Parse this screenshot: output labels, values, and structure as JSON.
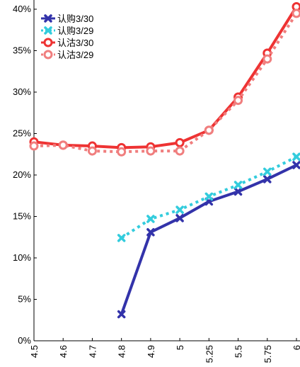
{
  "chart_data": {
    "type": "line",
    "title": "",
    "xlabel": "",
    "ylabel": "",
    "categories": [
      "4.5",
      "4.6",
      "4.7",
      "4.8",
      "4.9",
      "5",
      "5.25",
      "5.5",
      "5.75",
      "6"
    ],
    "ylim": [
      0,
      40
    ],
    "yticks": [
      "0%",
      "5%",
      "10%",
      "15%",
      "20%",
      "25%",
      "30%",
      "35%",
      "40%"
    ],
    "grid": false,
    "legend_position": "top-left",
    "series": [
      {
        "name": "认购3/30",
        "color": "#3333aa",
        "dash": "solid",
        "marker": "x",
        "values": [
          null,
          null,
          null,
          3.2,
          13.1,
          14.8,
          16.8,
          18.0,
          19.5,
          21.2
        ]
      },
      {
        "name": "认购3/29",
        "color": "#33ccdd",
        "dash": "dotted",
        "marker": "x",
        "values": [
          null,
          null,
          null,
          12.4,
          14.7,
          15.8,
          17.4,
          18.8,
          20.4,
          22.2
        ]
      },
      {
        "name": "认沽3/30",
        "color": "#ee3333",
        "dash": "solid",
        "marker": "circle",
        "values": [
          24.0,
          23.6,
          23.5,
          23.3,
          23.4,
          23.9,
          25.4,
          29.4,
          34.7,
          40.3
        ]
      },
      {
        "name": "认沽3/29",
        "color": "#f07e7e",
        "dash": "dotted",
        "marker": "circle",
        "values": [
          23.5,
          23.6,
          22.9,
          22.8,
          22.9,
          22.9,
          25.4,
          29.0,
          34.0,
          39.5
        ]
      }
    ]
  }
}
